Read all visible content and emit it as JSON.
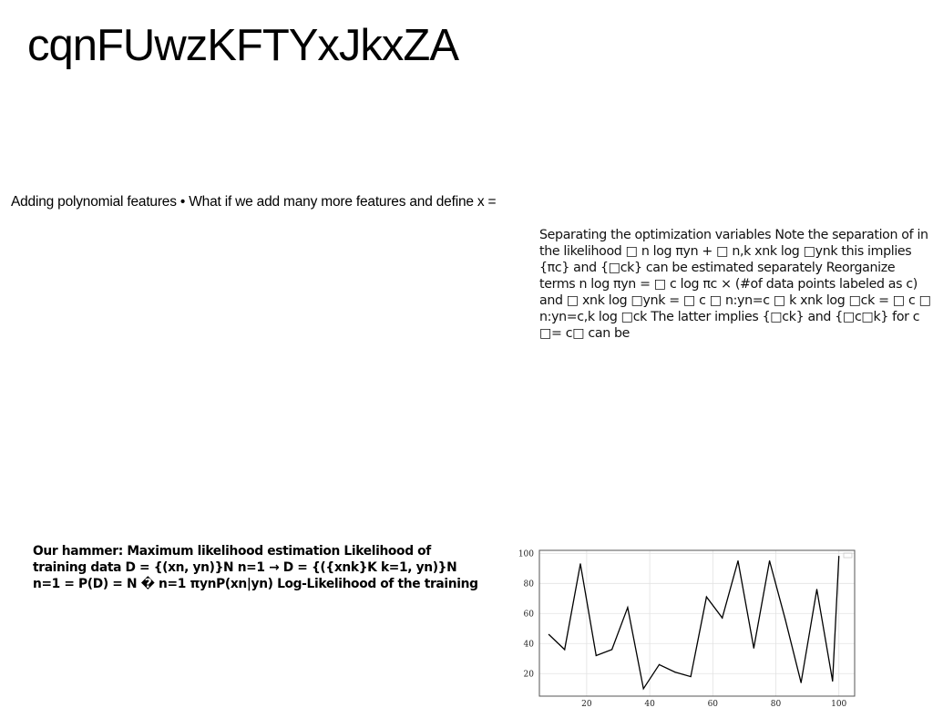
{
  "title": "cqnFUwzKFTYxJkxZA",
  "text_line": "Adding polynomial features • What if we add many more features and define x =",
  "paragraph_right": "Separating the optimization variables Note the separation of in the likelihood □ n log πyn + □ n,k xnk log □ynk this implies {πc} and {□ck} can be estimated separately Reorganize terms n log πyn = □ c log πc × (#of data points labeled as c) and □ xnk log □ynk = □ c □ n:yn=c □ k xnk log □ck = □ c □ n:yn=c,k log □ck The latter implies {□ck} and {□c□k} for c □= c□ can be",
  "paragraph_bold": "Our hammer: Maximum likelihood estimation Likelihood of training data D = {(xn, yn)}N n=1 → D = {({xnk}K k=1, yn)}N n=1 = P(D) = N � n=1 πynP(xn|yn) Log-Likelihood of the training",
  "chart_data": {
    "type": "line",
    "x": [
      8,
      13,
      18,
      23,
      28,
      33,
      38,
      43,
      48,
      53,
      58,
      63,
      68,
      73,
      78,
      83,
      88,
      93,
      98,
      100
    ],
    "values": [
      46,
      36,
      93,
      32,
      36,
      64,
      10,
      26,
      21,
      18,
      71,
      57,
      95,
      37,
      95,
      56,
      14,
      76,
      15,
      98
    ],
    "xticks": [
      "20",
      "40",
      "60",
      "80",
      "100"
    ],
    "yticks": [
      "20",
      "40",
      "60",
      "80",
      "100"
    ],
    "xlim": [
      5,
      105
    ],
    "ylim": [
      5,
      102
    ],
    "grid": true,
    "line_color": "#000000"
  }
}
